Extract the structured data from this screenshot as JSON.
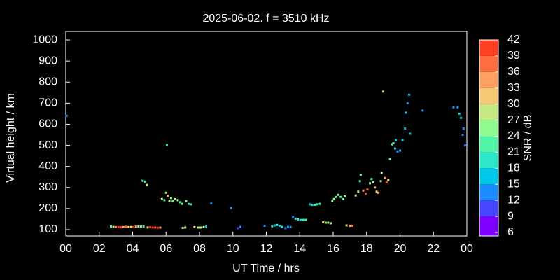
{
  "chart_data": {
    "type": "scatter",
    "title": "2025-06-02. f = 3510 kHz",
    "x_label": "UT Time / hrs",
    "y_label": "Virtual height / km",
    "xlim": [
      0,
      24
    ],
    "xticks": [
      {
        "value": 0,
        "label": "00"
      },
      {
        "value": 2,
        "label": "02"
      },
      {
        "value": 4,
        "label": "04"
      },
      {
        "value": 6,
        "label": "06"
      },
      {
        "value": 8,
        "label": "08"
      },
      10,
      12,
      14,
      16,
      18,
      20,
      22,
      {
        "value": 24,
        "label": "00"
      }
    ],
    "ylim": [
      70,
      1040
    ],
    "yticks": [
      100,
      200,
      300,
      400,
      500,
      600,
      700,
      800,
      900,
      1000
    ],
    "colorbar": {
      "label": "SNR / dB",
      "ticks": [
        6,
        9,
        12,
        15,
        18,
        21,
        24,
        27,
        30,
        33,
        36,
        39,
        42
      ],
      "colors": [
        "#8000ff",
        "#4646ff",
        "#1a8cff",
        "#00c8e8",
        "#2ee6c8",
        "#52f5a8",
        "#90fa90",
        "#c4e882",
        "#f4c874",
        "#ffa060",
        "#ff7040",
        "#ff4020"
      ]
    },
    "series": [
      {
        "x": [
          2.7,
          2.85,
          3.0,
          3.15,
          3.3,
          3.45,
          3.6,
          3.75,
          3.9,
          4.05,
          4.2,
          4.35,
          4.5,
          4.65,
          4.9,
          5.05,
          5.2,
          5.35,
          5.5,
          5.65,
          4.6,
          4.75,
          4.85,
          5.75,
          5.9,
          6.0,
          6.1,
          6.2,
          6.3,
          6.4,
          6.55,
          6.7,
          6.85,
          6.95,
          7.2,
          7.35,
          7.5,
          6.05,
          7.0,
          7.15,
          7.7,
          7.9,
          8.0,
          8.1,
          8.25,
          8.4,
          8.7,
          9.9,
          10.3,
          10.45,
          11.9,
          12.35,
          12.5,
          12.65,
          12.8,
          12.95,
          13.15,
          13.3,
          13.45,
          13.6,
          13.75,
          13.9,
          14.05,
          14.2,
          14.35,
          14.6,
          14.75,
          14.9,
          15.05,
          15.2,
          15.4,
          15.55,
          15.7,
          15.85,
          15.95,
          16.05,
          16.15,
          16.3,
          16.45,
          16.6,
          16.7,
          16.8,
          17.0,
          17.15,
          17.35,
          17.5,
          17.6,
          17.65,
          17.8,
          17.95,
          18.05,
          18.2,
          18.3,
          18.4,
          18.5,
          18.6,
          18.7,
          18.85,
          18.9,
          19.0,
          19.1,
          19.2,
          19.3,
          19.4,
          19.5,
          19.6,
          19.7,
          19.75,
          19.85,
          20.0,
          20.15,
          20.3,
          20.35,
          20.45,
          20.55,
          20.6,
          21.35,
          23.2,
          23.45,
          23.55,
          23.65,
          23.75,
          23.8,
          23.9,
          0.05
        ],
        "values": [
          115,
          113,
          112,
          112,
          111,
          112,
          113,
          112,
          112,
          112,
          114,
          115,
          115,
          115,
          110,
          111,
          110,
          110,
          109,
          110,
          332,
          328,
          312,
          245,
          240,
          275,
          260,
          238,
          250,
          235,
          245,
          240,
          230,
          222,
          235,
          222,
          220,
          502,
          108,
          110,
          112,
          110,
          110,
          110,
          112,
          115,
          225,
          202,
          107,
          113,
          118,
          116,
          120,
          122,
          118,
          113,
          107,
          113,
          112,
          160,
          152,
          148,
          146,
          146,
          146,
          220,
          218,
          218,
          220,
          222,
          135,
          133,
          133,
          130,
          235,
          245,
          255,
          265,
          255,
          245,
          258,
          120,
          118,
          118,
          262,
          280,
          330,
          360,
          285,
          270,
          290,
          320,
          340,
          325,
          300,
          280,
          275,
          330,
          370,
          755,
          345,
          325,
          335,
          435,
          505,
          510,
          485,
          525,
          470,
          475,
          525,
          580,
          655,
          700,
          740,
          555,
          665,
          680,
          680,
          650,
          630,
          550,
          580,
          500,
          640
        ],
        "snr": [
          21,
          24,
          36,
          42,
          39,
          33,
          36,
          30,
          27,
          42,
          30,
          27,
          24,
          21,
          27,
          42,
          39,
          36,
          39,
          33,
          21,
          21,
          27,
          27,
          21,
          24,
          33,
          27,
          24,
          21,
          27,
          24,
          21,
          24,
          24,
          18,
          18,
          18,
          24,
          27,
          30,
          27,
          24,
          27,
          24,
          15,
          12,
          12,
          9,
          12,
          12,
          18,
          15,
          18,
          15,
          18,
          12,
          12,
          12,
          12,
          18,
          18,
          18,
          18,
          18,
          15,
          18,
          18,
          18,
          21,
          30,
          27,
          24,
          27,
          24,
          24,
          21,
          24,
          21,
          21,
          24,
          30,
          33,
          36,
          30,
          27,
          21,
          21,
          33,
          39,
          36,
          27,
          21,
          24,
          33,
          30,
          33,
          24,
          27,
          30,
          33,
          39,
          27,
          21,
          24,
          21,
          15,
          15,
          12,
          15,
          15,
          15,
          15,
          12,
          15,
          15,
          12,
          12,
          12,
          15,
          15,
          12,
          12,
          12,
          12
        ]
      }
    ]
  }
}
